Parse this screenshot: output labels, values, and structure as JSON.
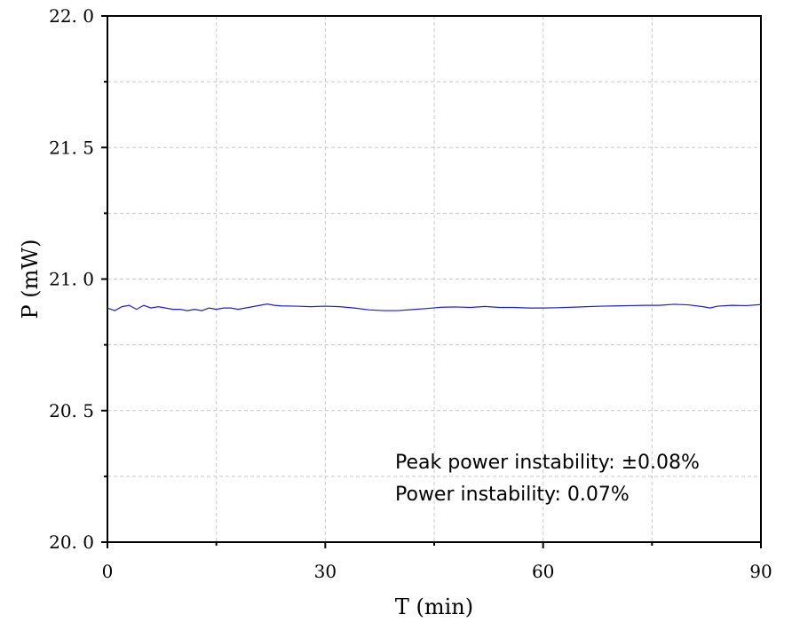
{
  "chart_data": {
    "type": "line",
    "xlabel": "T (min)",
    "ylabel": "P (mW)",
    "xlim": [
      0,
      90
    ],
    "ylim": [
      20.0,
      22.0
    ],
    "x_ticks": [
      0,
      30,
      60,
      90
    ],
    "x_tick_labels": [
      "0",
      "30",
      "60",
      "90"
    ],
    "y_ticks": [
      20.0,
      20.5,
      21.0,
      21.5,
      22.0
    ],
    "y_tick_labels": [
      "20. 0",
      "20. 5",
      "21. 0",
      "21. 5",
      "22. 0"
    ],
    "grid": true,
    "series": [
      {
        "color": "#1f1fd6",
        "x": [
          0,
          1,
          2,
          3,
          4,
          5,
          6,
          7,
          8,
          9,
          10,
          11,
          12,
          13,
          14,
          15,
          16,
          17,
          18,
          19,
          20,
          21,
          22,
          23,
          24,
          26,
          28,
          30,
          32,
          34,
          36,
          38,
          40,
          42,
          44,
          46,
          48,
          50,
          52,
          54,
          56,
          58,
          60,
          62,
          64,
          66,
          68,
          70,
          72,
          74,
          76,
          78,
          80,
          82,
          83,
          84,
          86,
          88,
          90
        ],
        "y": [
          20.89,
          20.88,
          20.895,
          20.9,
          20.885,
          20.9,
          20.89,
          20.895,
          20.89,
          20.885,
          20.885,
          20.88,
          20.885,
          20.88,
          20.89,
          20.885,
          20.89,
          20.89,
          20.885,
          20.89,
          20.895,
          20.9,
          20.905,
          20.9,
          20.898,
          20.897,
          20.895,
          20.897,
          20.895,
          20.89,
          20.883,
          20.88,
          20.88,
          20.884,
          20.888,
          20.893,
          20.894,
          20.892,
          20.896,
          20.892,
          20.892,
          20.89,
          20.89,
          20.891,
          20.893,
          20.895,
          20.897,
          20.898,
          20.899,
          20.9,
          20.9,
          20.904,
          20.902,
          20.895,
          20.89,
          20.897,
          20.9,
          20.899,
          20.903
        ]
      }
    ],
    "annotations": [
      "Peak power instability: ±0.08%",
      "Power instability: 0.07%"
    ]
  }
}
